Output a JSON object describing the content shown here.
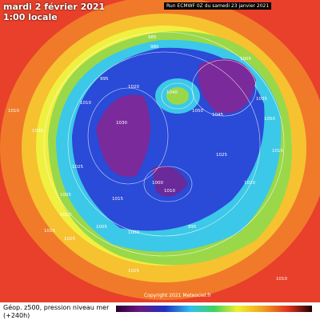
{
  "header": {
    "date": "mardi 2 février 2021",
    "local_time": "1:00 locale",
    "run": "Run ECMWF 0Z du samedi 23 janvier 2021"
  },
  "footer": {
    "field": "Géop. z500, pression niveau mer",
    "lead": "(+240h)",
    "copyright": "Copyright 2021 Meteociel.fr"
  },
  "isobar_labels": [
    "985",
    "980",
    "995",
    "1010",
    "1020",
    "1040",
    "1050",
    "1030",
    "1035",
    "1025",
    "1015",
    "1005",
    "1000",
    "1045",
    "1050",
    "1020",
    "1015",
    "1005",
    "1000",
    "995",
    "1010",
    "1025",
    "1030",
    "1020",
    "1015",
    "1025",
    "1005",
    "1010",
    "1025",
    "1010"
  ]
}
